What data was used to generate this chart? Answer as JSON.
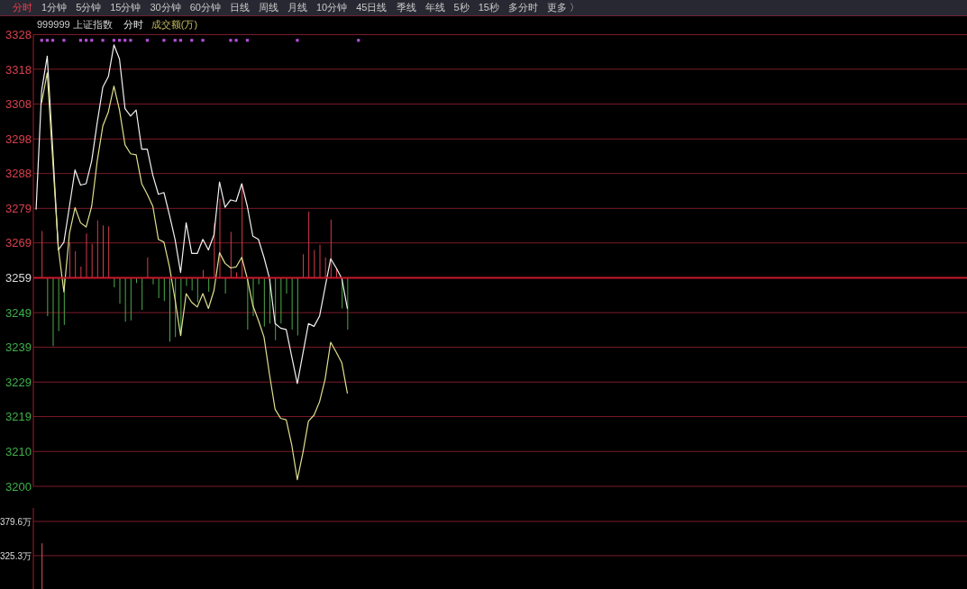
{
  "chart_data": [
    {
      "type": "other",
      "annotations": [
        "分时",
        "1分钟",
        "5分钟",
        "15分钟",
        "30分钟",
        "60分钟",
        "日线",
        "周线",
        "月线",
        "10分钟",
        "45日线",
        "季线",
        "年线",
        "5秒",
        "15秒",
        "多分时",
        "更多 〉"
      ]
    },
    {
      "type": "line",
      "title": "999999 上证指数",
      "subtitle": "分时",
      "annotations": [
        "成交额(万)"
      ],
      "categories": [
        null,
        null,
        null,
        null,
        null,
        null,
        null,
        null,
        null,
        null,
        null,
        null,
        null,
        null,
        null,
        null,
        null,
        null,
        null,
        null,
        null,
        null,
        null,
        null,
        null,
        null,
        null,
        null,
        null,
        null,
        null,
        null,
        null,
        null,
        null,
        null,
        null,
        null,
        null,
        null,
        null,
        null,
        null,
        null,
        null,
        null,
        null,
        null,
        null,
        null,
        null,
        null,
        null,
        null,
        null,
        null,
        null,
        null,
        null,
        null,
        null,
        null,
        null,
        null,
        null,
        null,
        null,
        null,
        null,
        null,
        null,
        null,
        null,
        null,
        null,
        null,
        null,
        null,
        null,
        null,
        null,
        null,
        null,
        null,
        null,
        null,
        null,
        null,
        null,
        null,
        null,
        null,
        null,
        null,
        null,
        null,
        null,
        null,
        null,
        null,
        null,
        null,
        null,
        null,
        null,
        null,
        null,
        null,
        null,
        null,
        null,
        null,
        null,
        null,
        null,
        null,
        null,
        null,
        null,
        null,
        null,
        null,
        null,
        null,
        null,
        null,
        null,
        null,
        null,
        null,
        null,
        null,
        null,
        null,
        null,
        null,
        null,
        null,
        null,
        null,
        null,
        null,
        null,
        null,
        null,
        null,
        null,
        null,
        null,
        null,
        null,
        null,
        null,
        null,
        null,
        null,
        null,
        null,
        null,
        null,
        null,
        null,
        null,
        null,
        null,
        null,
        null,
        null
      ],
      "series": [
        {
          "type": "bar",
          "color": "#d23c4c",
          "base": [
            null,
            3258.9,
            null,
            null,
            null,
            null,
            3258.9,
            3258.9,
            3258.9,
            3258.9,
            3258.9,
            3258.9,
            3258.9,
            3258.9,
            null,
            null,
            null,
            null,
            null,
            null,
            3258.9,
            null,
            null,
            null,
            null,
            null,
            null,
            null,
            null,
            null,
            3258.9,
            null,
            3258.9,
            3258.9,
            null,
            3258.9,
            3258.9,
            3258.9,
            null,
            null,
            null,
            null,
            null,
            null,
            null,
            null,
            null,
            null,
            3258.9,
            3258.9,
            3258.9,
            3258.9,
            3258.9,
            3258.9,
            3258.9,
            null,
            null,
            null,
            null,
            null,
            null,
            null,
            null,
            null,
            null,
            null,
            null,
            null,
            null,
            null,
            null,
            null,
            null,
            null,
            null,
            null,
            null,
            null,
            null,
            null,
            null,
            null,
            null,
            null,
            null,
            null,
            null,
            null,
            null,
            null,
            null,
            null,
            null,
            null,
            null,
            null,
            null,
            null,
            null,
            null,
            null,
            null,
            null,
            null,
            null,
            null,
            null,
            null,
            null,
            null,
            null,
            null,
            null,
            null,
            null,
            null,
            null,
            null,
            null,
            null,
            null,
            null,
            null,
            null,
            null,
            null,
            null,
            null,
            null,
            null,
            null,
            null,
            null,
            null,
            null,
            null,
            null,
            null,
            null,
            null,
            null,
            null,
            null,
            null,
            null,
            null,
            null,
            null,
            null,
            null,
            null,
            null,
            null,
            null,
            null,
            null,
            null,
            null,
            null,
            null,
            null,
            null,
            null,
            null,
            null,
            null,
            null,
            null
          ],
          "values": [
            null,
            13.3,
            null,
            null,
            null,
            null,
            10.0,
            7.5,
            3.2,
            12.6,
            9.6,
            16.3,
            14.9,
            14.6,
            null,
            null,
            null,
            null,
            null,
            null,
            5.8,
            null,
            null,
            null,
            null,
            null,
            null,
            null,
            null,
            null,
            2.2,
            null,
            15.6,
            22.4,
            null,
            13.0,
            1.5,
            26.7,
            null,
            null,
            null,
            null,
            null,
            null,
            null,
            null,
            null,
            null,
            6.7,
            18.8,
            7.9,
            9.4,
            5.8,
            16.5,
            2.8,
            null,
            null,
            null,
            null,
            null,
            null,
            null,
            null,
            null,
            null,
            null,
            null,
            null,
            null,
            null,
            null,
            null,
            null,
            null,
            null,
            null,
            null,
            null,
            null,
            null,
            null,
            null,
            null,
            null,
            null,
            null,
            null,
            null,
            null,
            null,
            null,
            null,
            null,
            null,
            null,
            null,
            null,
            null,
            null,
            null,
            null,
            null,
            null,
            null,
            null,
            null,
            null,
            null,
            null,
            null,
            null,
            null,
            null,
            null,
            null,
            null,
            null,
            null,
            null,
            null,
            null,
            null,
            null,
            null,
            null,
            null,
            null,
            null,
            null,
            null,
            null,
            null,
            null,
            null,
            null,
            null,
            null,
            null,
            null,
            null,
            null,
            null,
            null,
            null,
            null,
            null,
            null,
            null,
            null,
            null,
            null,
            null,
            null,
            null,
            null,
            null,
            null,
            null,
            null,
            null,
            null,
            null,
            null,
            null,
            null,
            null,
            null,
            null
          ]
        },
        {
          "type": "bar",
          "color": "#4caa4c",
          "base": [
            null,
            null,
            3258.9,
            3258.9,
            3258.9,
            3258.9,
            null,
            null,
            null,
            null,
            null,
            null,
            null,
            null,
            3258.9,
            3258.9,
            3258.9,
            3258.9,
            3258.9,
            3258.9,
            null,
            3258.9,
            3258.9,
            3258.9,
            3258.9,
            3258.9,
            3258.9,
            3258.9,
            3258.9,
            3258.9,
            null,
            3258.9,
            null,
            null,
            3258.9,
            null,
            null,
            null,
            3258.9,
            3258.9,
            3258.9,
            3258.9,
            3258.9,
            3258.9,
            3258.9,
            3258.9,
            3258.9,
            3258.9,
            null,
            null,
            null,
            null,
            null,
            null,
            null,
            3258.9,
            3258.9,
            null,
            null,
            null,
            null,
            null,
            null,
            null,
            null,
            null,
            null,
            null,
            null,
            null,
            null,
            null,
            null,
            null,
            null,
            null,
            null,
            null,
            null,
            null,
            null,
            null,
            null,
            null,
            null,
            null,
            null,
            null,
            null,
            null,
            null,
            null,
            null,
            null,
            null,
            null,
            null,
            null,
            null,
            null,
            null,
            null,
            null,
            null,
            null,
            null,
            null,
            null,
            null,
            null,
            null,
            null,
            null,
            null,
            null,
            null,
            null,
            null,
            null,
            null,
            null,
            null,
            null,
            null,
            null,
            null,
            null,
            null,
            null,
            null,
            null,
            null,
            null,
            null,
            null,
            null,
            null,
            null,
            null,
            null,
            null,
            null,
            null,
            null,
            null,
            null,
            null,
            null,
            null,
            null,
            null,
            null,
            null,
            null,
            null,
            null,
            null,
            null,
            null,
            null,
            null,
            null,
            null,
            null,
            null,
            null,
            null,
            null
          ],
          "values": [
            null,
            null,
            -10.9,
            -19.4,
            -15.1,
            -13.4,
            null,
            null,
            null,
            null,
            null,
            null,
            null,
            null,
            -2.7,
            -7.4,
            -12.5,
            -12.1,
            -1.5,
            -9.1,
            null,
            -1.9,
            -5.8,
            -6.6,
            -18.1,
            -16.8,
            -16.4,
            -2.3,
            -3.6,
            -7.0,
            null,
            -4.0,
            null,
            null,
            -4.5,
            null,
            null,
            null,
            -14.7,
            -10.9,
            -1.9,
            -13.8,
            -13.0,
            -17.7,
            -13.0,
            -4.5,
            -14.7,
            -16.4,
            null,
            null,
            null,
            null,
            null,
            null,
            null,
            -8.7,
            -14.7,
            null,
            null,
            null,
            null,
            null,
            null,
            null,
            null,
            null,
            null,
            null,
            null,
            null,
            null,
            null,
            null,
            null,
            null,
            null,
            null,
            null,
            null,
            null,
            null,
            null,
            null,
            null,
            null,
            null,
            null,
            null,
            null,
            null,
            null,
            null,
            null,
            null,
            null,
            null,
            null,
            null,
            null,
            null,
            null,
            null,
            null,
            null,
            null,
            null,
            null,
            null,
            null,
            null,
            null,
            null,
            null,
            null,
            null,
            null,
            null,
            null,
            null,
            null,
            null,
            null,
            null,
            null,
            null,
            null,
            null,
            null,
            null,
            null,
            null,
            null,
            null,
            null,
            null,
            null,
            null,
            null,
            null,
            null,
            null,
            null,
            null,
            null,
            null,
            null,
            null,
            null,
            null,
            null,
            null,
            null,
            null,
            null,
            null,
            null,
            null,
            null,
            null,
            null,
            null,
            null,
            null,
            null,
            null,
            null,
            null,
            null
          ]
        },
        {
          "type": "line",
          "color": "#f2f2f2",
          "values": [
            3278.4,
            3312.1,
            3321.8,
            3295,
            3266.8,
            3269.0,
            3279.2,
            3289.5,
            3285.2,
            3285.6,
            3292.1,
            3303,
            3313,
            3316,
            3325,
            3321,
            3306.9,
            3304.8,
            3306.5,
            3295.4,
            3295.4,
            3288,
            3282.6,
            3283.1,
            3276.7,
            3269.8,
            3260.4,
            3274.5,
            3265.8,
            3265.8,
            3269.8,
            3266.8,
            3271.1,
            3286.1,
            3278.9,
            3281,
            3280.6,
            3285.6,
            3279.2,
            3270.7,
            3269.8,
            3264.7,
            3258.7,
            3245.9,
            3244.6,
            3244.2,
            3236.5,
            3228.9,
            3237.4,
            3245.9,
            3245.1,
            3248,
            3256.2,
            3264.3,
            3261.7,
            3258.7,
            3250.2,
            null,
            null,
            null,
            null,
            null,
            null,
            null,
            null,
            null,
            null,
            null,
            null,
            null,
            null,
            null,
            null,
            null,
            null,
            null,
            null,
            null,
            null,
            null,
            null,
            null,
            null,
            null,
            null,
            null,
            null,
            null,
            null,
            null,
            null,
            null,
            null,
            null,
            null,
            null,
            null,
            null,
            null,
            null,
            null,
            null,
            null,
            null,
            null,
            null,
            null,
            null,
            null,
            null,
            null,
            null,
            null,
            null,
            null,
            null,
            null,
            null,
            null,
            null,
            null,
            null,
            null,
            null,
            null,
            null,
            null,
            null,
            null,
            null,
            null,
            null,
            null,
            null,
            null,
            null,
            null,
            null,
            null,
            null,
            null,
            null,
            null,
            null,
            null,
            null,
            null,
            null,
            null,
            null,
            null,
            null,
            null,
            null,
            null,
            null,
            null,
            null,
            null,
            null,
            null,
            null,
            null,
            null,
            null,
            null,
            null,
            null
          ]
        },
        {
          "type": "line",
          "color": "#e0e090",
          "values": [
            null,
            3308.7,
            3317.1,
            3292,
            3267.3,
            3254.9,
            3271.5,
            3278.8,
            3274.5,
            3273.3,
            3279.2,
            3292.1,
            3302,
            3306,
            3313.3,
            3306.5,
            3296.6,
            3294.1,
            3293.8,
            3285.6,
            3282.6,
            3279.2,
            3269.8,
            3269,
            3262,
            3252.7,
            3242.5,
            3254.4,
            3251.9,
            3250.6,
            3254.4,
            3250.2,
            3255.3,
            3266,
            3263,
            3261.7,
            3262,
            3264.7,
            3258.7,
            3251,
            3246.8,
            3242.1,
            3231.4,
            3221.6,
            3219,
            3218.6,
            3211.4,
            3201.6,
            3209.2,
            3218.2,
            3219.9,
            3223.7,
            3230.1,
            3240.6,
            3237.8,
            3234.8,
            3226.2,
            null,
            null,
            null,
            null,
            null,
            null,
            null,
            null,
            null,
            null,
            null,
            null,
            null,
            null,
            null,
            null,
            null,
            null,
            null,
            null,
            null,
            null,
            null,
            null,
            null,
            null,
            null,
            null,
            null,
            null,
            null,
            null,
            null,
            null,
            null,
            null,
            null,
            null,
            null,
            null,
            null,
            null,
            null,
            null,
            null,
            null,
            null,
            null,
            null,
            null,
            null,
            null,
            null,
            null,
            null,
            null,
            null,
            null,
            null,
            null,
            null,
            null,
            null,
            null,
            null,
            null,
            null,
            null,
            null,
            null,
            null,
            null,
            null,
            null,
            null,
            null,
            null,
            null,
            null,
            null,
            null,
            null,
            null,
            null,
            null,
            null,
            null,
            null,
            null,
            null,
            null,
            null,
            null,
            null,
            null,
            null,
            null,
            null,
            null,
            null,
            null,
            null,
            null,
            null,
            null,
            null,
            null,
            null,
            null,
            null,
            null
          ]
        },
        {
          "type": "scatter",
          "color": "#b44fd8",
          "marker": "square",
          "values": [
            null,
            3326.3,
            3326.3,
            3326.3,
            null,
            3326.3,
            null,
            null,
            3326.3,
            3326.3,
            3326.3,
            null,
            3326.3,
            null,
            3326.3,
            3326.3,
            3326.3,
            3326.3,
            null,
            null,
            3326.3,
            null,
            null,
            3326.3,
            null,
            3326.3,
            3326.3,
            null,
            3326.3,
            null,
            3326.3,
            null,
            null,
            null,
            null,
            3326.3,
            3326.3,
            null,
            3326.3,
            null,
            null,
            null,
            null,
            null,
            null,
            null,
            null,
            3326.3,
            null,
            null,
            null,
            null,
            null,
            null,
            null,
            null,
            null,
            null,
            3326.3,
            null,
            null,
            null,
            null,
            null,
            null,
            null,
            null,
            null,
            null,
            null,
            null,
            null,
            null,
            null,
            null,
            null,
            null,
            null,
            null,
            null,
            null,
            null,
            null,
            null,
            null,
            null,
            null,
            null,
            null,
            null,
            null,
            null,
            null,
            null,
            null,
            null,
            null,
            null,
            null,
            null,
            null,
            null,
            null,
            null,
            null,
            null,
            null,
            null,
            null,
            null,
            null,
            null,
            null,
            null,
            null,
            null,
            null,
            null,
            null,
            null,
            null,
            null,
            null,
            null,
            null,
            null,
            null,
            null,
            null,
            null,
            null,
            null,
            null,
            null,
            null,
            null,
            null,
            null,
            null,
            null,
            null,
            null,
            null,
            null,
            null,
            null,
            null,
            null,
            null,
            null,
            null,
            null,
            null,
            null,
            null,
            null,
            null,
            null,
            null,
            null,
            null,
            null,
            null,
            null,
            null,
            null,
            null,
            null
          ]
        }
      ],
      "ylim": [
        3199.7,
        3327.9
      ],
      "yticks": [
        {
          "value": 3327.9,
          "label": "3328"
        },
        {
          "value": 3318.1,
          "label": "3318"
        },
        {
          "value": 3308.2,
          "label": "3308"
        },
        {
          "value": 3298.3,
          "label": "3298"
        },
        {
          "value": 3288.5,
          "label": "3288"
        },
        {
          "value": 3278.6,
          "label": "3279"
        },
        {
          "value": 3268.8,
          "label": "3269"
        },
        {
          "value": 3258.9,
          "label": "3259"
        },
        3249,
        {
          "value": 3239.2,
          "label": "3239"
        },
        {
          "value": 3229.3,
          "label": "3229"
        },
        {
          "value": 3219.5,
          "label": "3219"
        },
        {
          "value": 3209.6,
          "label": "3210"
        },
        {
          "value": 3199.7,
          "label": "3200"
        }
      ],
      "ref_lines": [
        {
          "axis": "y",
          "value": 3258.9,
          "color": "#c8182c"
        }
      ],
      "grid": "y",
      "tick_labels": "y",
      "line_style": "solid"
    },
    {
      "type": "bar",
      "categories": [
        null,
        null,
        null,
        null,
        null,
        null,
        null,
        null,
        null,
        null,
        null,
        null,
        null,
        null,
        null,
        null,
        null,
        null,
        null,
        null,
        null,
        null,
        null,
        null,
        null,
        null,
        null,
        null,
        null,
        null,
        null,
        null,
        null,
        null,
        null,
        null,
        null,
        null,
        null,
        null,
        null,
        null,
        null,
        null,
        null,
        null,
        null,
        null,
        null,
        null,
        null,
        null,
        null,
        null,
        null,
        null,
        null,
        null,
        null,
        null,
        null,
        null,
        null,
        null,
        null,
        null,
        null,
        null,
        null,
        null,
        null,
        null,
        null,
        null,
        null,
        null,
        null,
        null,
        null,
        null,
        null,
        null,
        null,
        null,
        null,
        null,
        null,
        null,
        null,
        null,
        null,
        null,
        null,
        null,
        null,
        null,
        null,
        null,
        null,
        null,
        null,
        null,
        null,
        null,
        null,
        null,
        null,
        null,
        null,
        null,
        null,
        null,
        null,
        null,
        null,
        null,
        null,
        null,
        null,
        null,
        null,
        null,
        null,
        null,
        null,
        null,
        null,
        null,
        null,
        null,
        null,
        null,
        null,
        null,
        null,
        null,
        null,
        null,
        null,
        null,
        null,
        null,
        null,
        null,
        null,
        null,
        null,
        null,
        null,
        null,
        null,
        null,
        null,
        null,
        null,
        null,
        null,
        null,
        null,
        null,
        null,
        null,
        null,
        null,
        null,
        null,
        null,
        null
      ],
      "values": [
        null,
        345,
        null,
        null,
        null,
        null,
        null,
        null,
        null,
        null,
        null,
        null,
        null,
        null,
        null,
        null,
        null,
        null,
        null,
        null,
        null,
        null,
        null,
        null,
        null,
        null,
        null,
        null,
        null,
        null,
        null,
        null,
        null,
        null,
        null,
        null,
        null,
        null,
        null,
        null,
        null,
        null,
        null,
        null,
        null,
        null,
        null,
        null,
        null,
        null,
        null,
        null,
        null,
        null,
        null,
        null,
        null,
        null,
        null,
        null,
        null,
        null,
        null,
        null,
        null,
        null,
        null,
        null,
        null,
        null,
        null,
        null,
        null,
        null,
        null,
        null,
        null,
        null,
        null,
        null,
        null,
        null,
        null,
        null,
        null,
        null,
        null,
        null,
        null,
        null,
        null,
        null,
        null,
        null,
        null,
        null,
        null,
        null,
        null,
        null,
        null,
        null,
        null,
        null,
        null,
        null,
        null,
        null,
        null,
        null,
        null,
        null,
        null,
        null,
        null,
        null,
        null,
        null,
        null,
        null,
        null,
        null,
        null,
        null,
        null,
        null,
        null,
        null,
        null,
        null,
        null,
        null,
        null,
        null,
        null,
        null,
        null,
        null,
        null,
        null,
        null,
        null,
        null,
        null,
        null,
        null,
        null,
        null,
        null,
        null,
        null,
        null,
        null,
        null,
        null,
        null,
        null,
        null,
        null,
        null,
        null,
        null,
        null,
        null,
        null,
        null,
        null,
        null
      ],
      "color": "#d9506a",
      "ylim": [
        272.4,
        401.0
      ],
      "yticks": [
        {
          "value": 379.6,
          "label": "379.6万"
        },
        {
          "value": 325.3,
          "label": "325.3万"
        }
      ],
      "grid": "y",
      "tick_labels": "y"
    }
  ]
}
